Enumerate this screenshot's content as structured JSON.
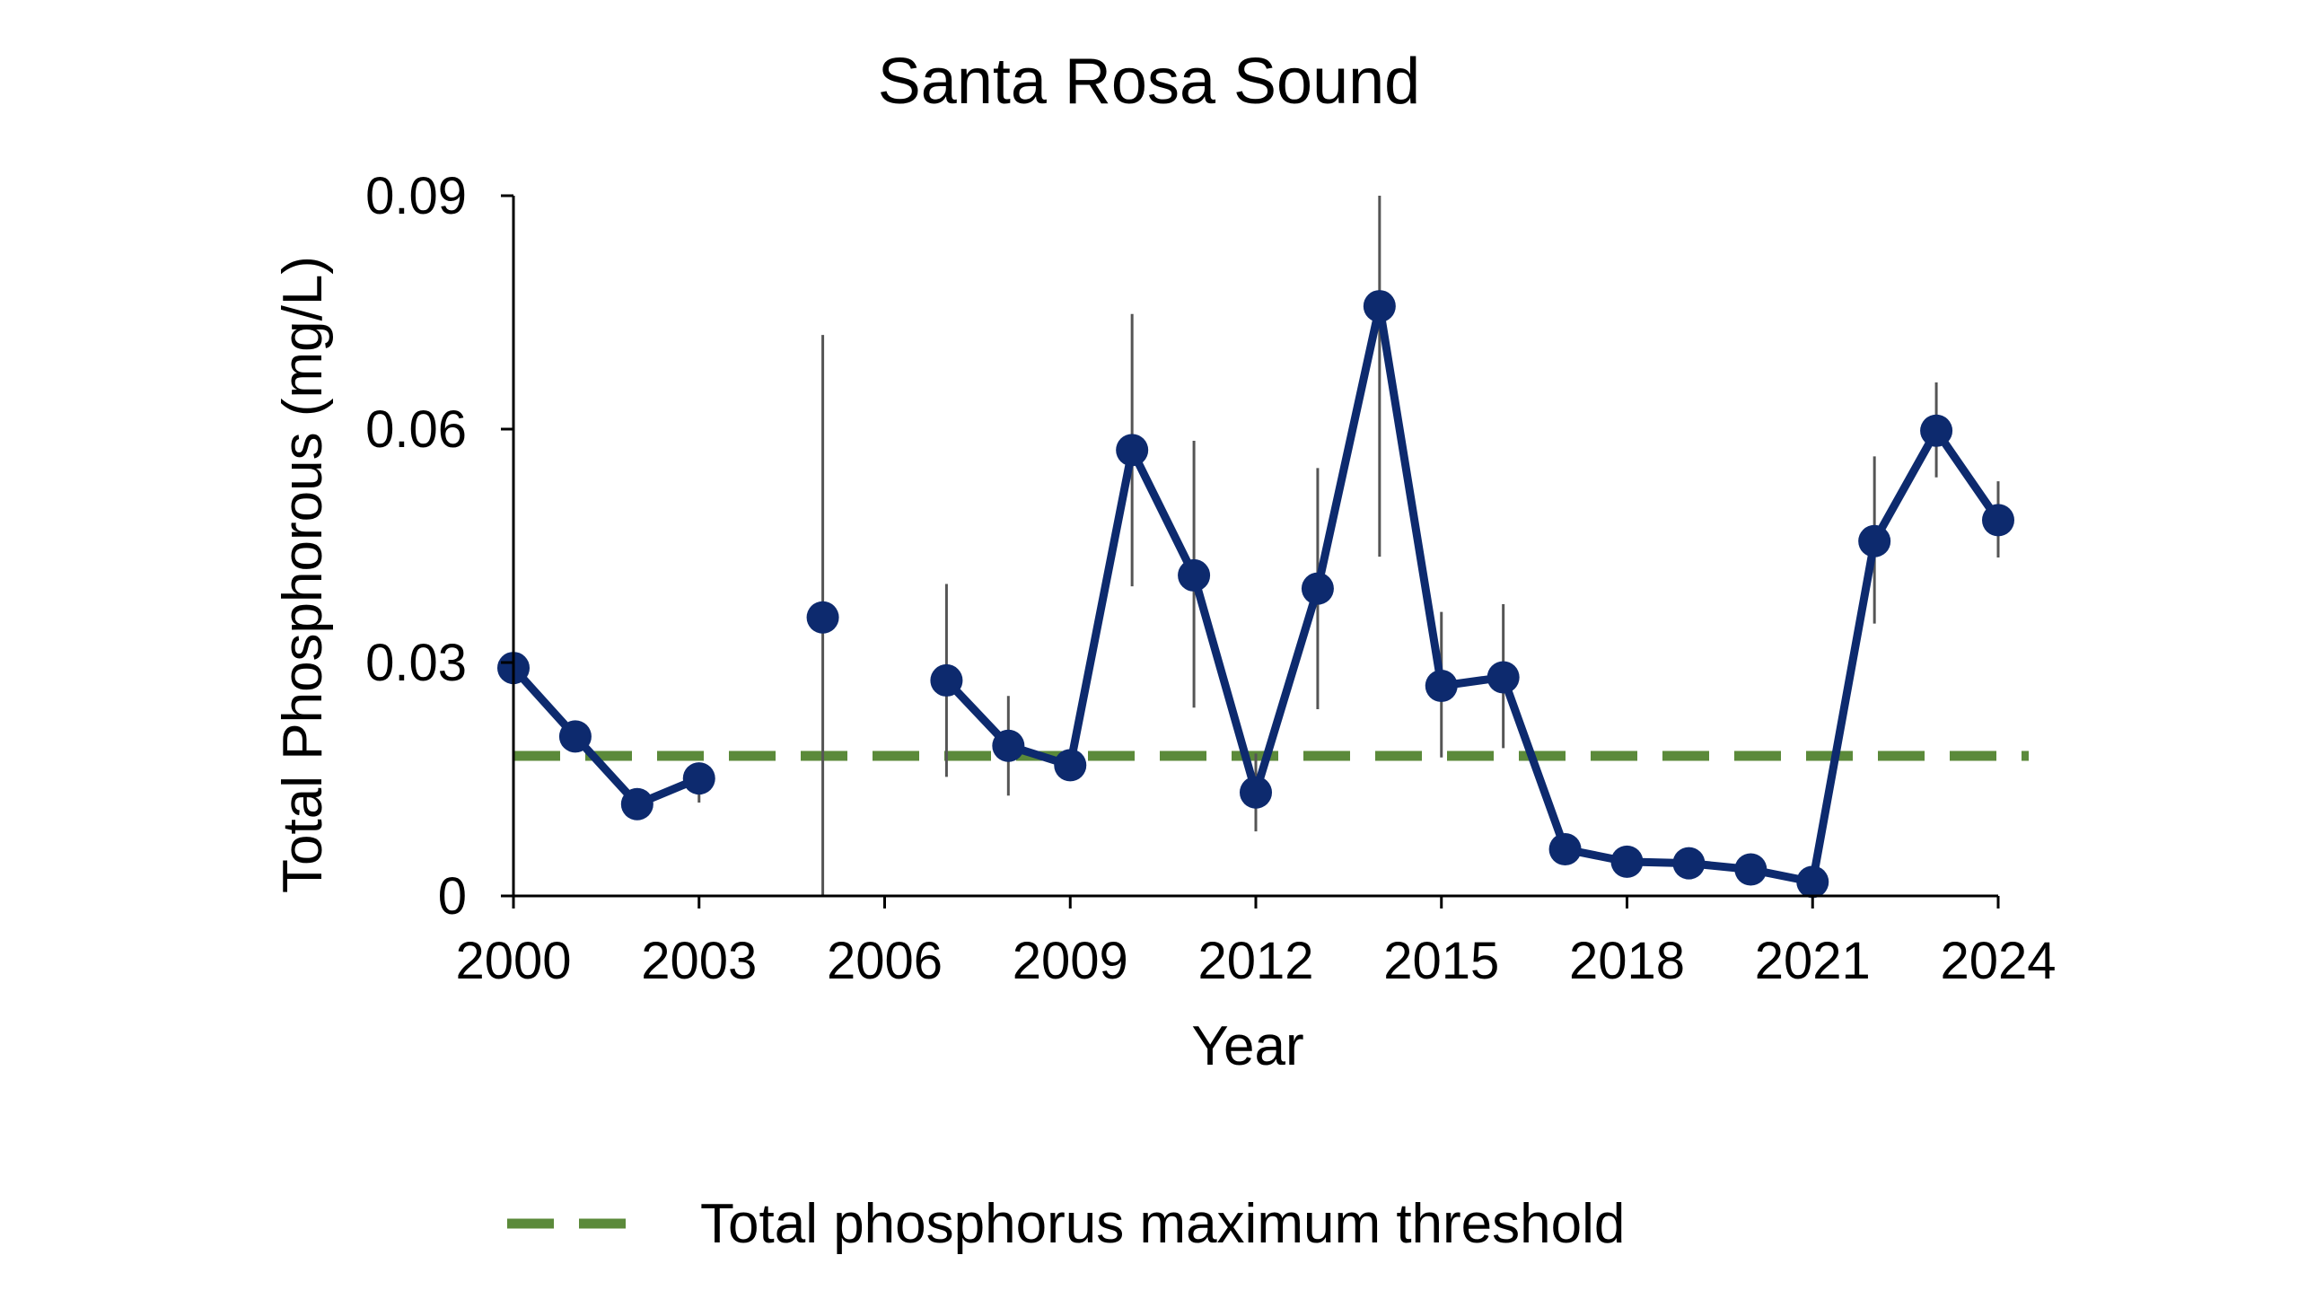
{
  "chart_data": {
    "type": "line",
    "title": "Santa Rosa Sound",
    "xlabel": "Year",
    "ylabel": "Total Phosphorous (mg/L)",
    "xlim": [
      2000,
      2024
    ],
    "ylim": [
      0,
      0.09
    ],
    "x_ticks": [
      "2000",
      "2003",
      "2006",
      "2009",
      "2012",
      "2015",
      "2018",
      "2021",
      "2024"
    ],
    "y_ticks": [
      "0",
      "0.03",
      "0.06",
      "0.09"
    ],
    "grid": false,
    "legend_position": "bottom",
    "series": [
      {
        "color": "#0d2a6e",
        "segments": [
          [
            {
              "x": 2000,
              "y": 0.0293,
              "lo": 0.0293,
              "hi": 0.0293
            },
            {
              "x": 2001,
              "y": 0.0205,
              "lo": 0.0205,
              "hi": 0.0205
            },
            {
              "x": 2002,
              "y": 0.0118,
              "lo": 0.0118,
              "hi": 0.0118
            },
            {
              "x": 2003,
              "y": 0.0151,
              "lo": 0.012,
              "hi": 0.0151
            }
          ],
          [
            {
              "x": 2005,
              "y": 0.0358,
              "lo": 0.0,
              "hi": 0.0721
            }
          ],
          [
            {
              "x": 2007,
              "y": 0.0277,
              "lo": 0.0153,
              "hi": 0.0401
            },
            {
              "x": 2008,
              "y": 0.0193,
              "lo": 0.0129,
              "hi": 0.0257
            },
            {
              "x": 2009,
              "y": 0.0168,
              "lo": 0.0168,
              "hi": 0.0168
            },
            {
              "x": 2010,
              "y": 0.0573,
              "lo": 0.0398,
              "hi": 0.0748
            },
            {
              "x": 2011,
              "y": 0.0412,
              "lo": 0.0242,
              "hi": 0.0585
            },
            {
              "x": 2012,
              "y": 0.0133,
              "lo": 0.0083,
              "hi": 0.0183
            },
            {
              "x": 2013,
              "y": 0.0395,
              "lo": 0.024,
              "hi": 0.055
            },
            {
              "x": 2014,
              "y": 0.0758,
              "lo": 0.0436,
              "hi": 0.09
            },
            {
              "x": 2015,
              "y": 0.027,
              "lo": 0.0178,
              "hi": 0.0365
            },
            {
              "x": 2016,
              "y": 0.0281,
              "lo": 0.019,
              "hi": 0.0375
            },
            {
              "x": 2017,
              "y": 0.006,
              "lo": 0.006,
              "hi": 0.006
            },
            {
              "x": 2018,
              "y": 0.0044,
              "lo": 0.0044,
              "hi": 0.0044
            },
            {
              "x": 2019,
              "y": 0.0042,
              "lo": 0.0042,
              "hi": 0.0042
            },
            {
              "x": 2020,
              "y": 0.0034,
              "lo": 0.0034,
              "hi": 0.0034
            },
            {
              "x": 2021,
              "y": 0.0018,
              "lo": 0.0018,
              "hi": 0.0018
            },
            {
              "x": 2022,
              "y": 0.0456,
              "lo": 0.035,
              "hi": 0.0565
            },
            {
              "x": 2023,
              "y": 0.0598,
              "lo": 0.0538,
              "hi": 0.066
            },
            {
              "x": 2024,
              "y": 0.0483,
              "lo": 0.0435,
              "hi": 0.0533
            }
          ]
        ]
      }
    ],
    "threshold": {
      "label": "Total phosphorus maximum threshold",
      "y": 0.018,
      "color": "#5b8a3a",
      "style": "dashed"
    }
  }
}
